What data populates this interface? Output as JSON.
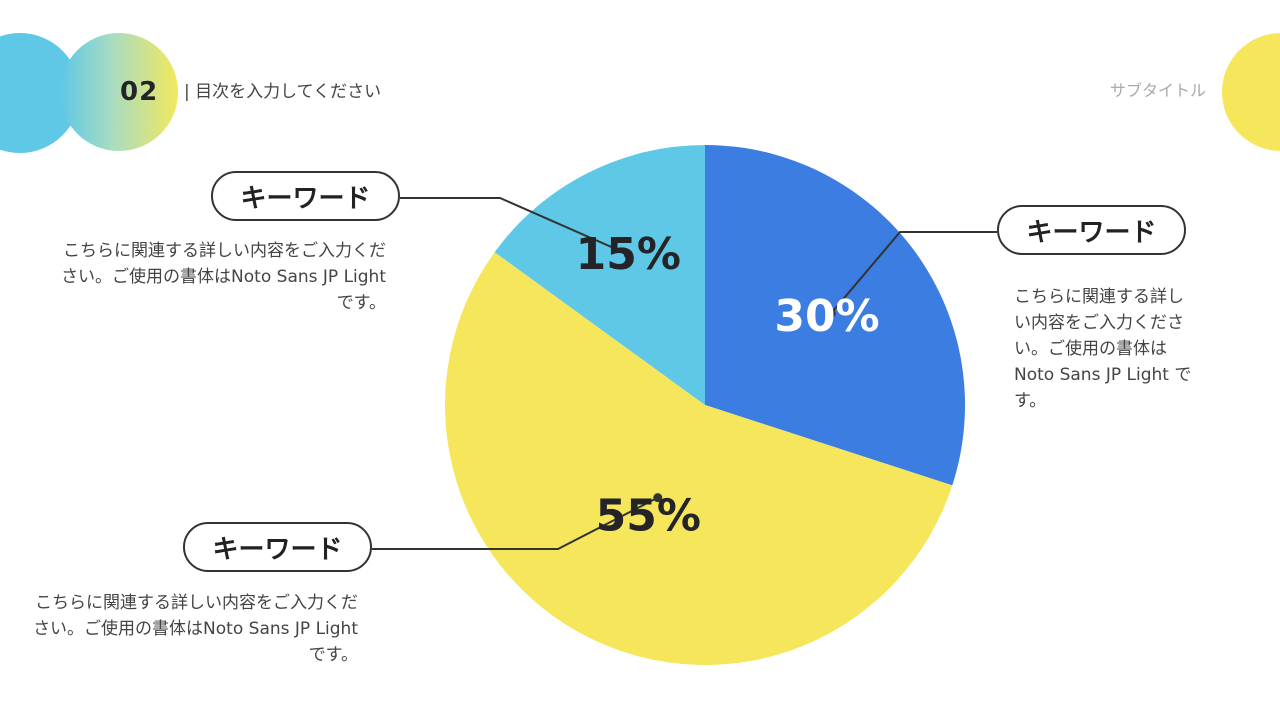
{
  "header": {
    "section_number": "02",
    "toc_text": "| 目次を入力してください",
    "subtitle": "サブタイトル"
  },
  "colors": {
    "blue": "#3b7de1",
    "yellow": "#f5e65c",
    "cyan": "#5ec8e6"
  },
  "callouts": [
    {
      "keyword": "キーワード",
      "description": "こちらに関連する詳しい内容をご入力ください。ご使用の書体はNoto Sans JP Light です。"
    },
    {
      "keyword": "キーワード",
      "description": "こちらに関連する詳しい内容をご入力ください。ご使用の書体はNoto Sans JP Light です。"
    },
    {
      "keyword": "キーワード",
      "description": "こちらに関連する詳しい内容をご入力ください。ご使用の書体はNoto Sans JP Light です。"
    }
  ],
  "chart_data": {
    "type": "pie",
    "categories": [
      "30%",
      "55%",
      "15%"
    ],
    "values": [
      30,
      55,
      15
    ],
    "labels": [
      "30%",
      "55%",
      "15%"
    ],
    "colors": [
      "#3b7de1",
      "#f5e65c",
      "#5ec8e6"
    ],
    "label_colors": [
      "#ffffff",
      "#242428",
      "#242428"
    ],
    "start": "12 o'clock",
    "direction": "clockwise"
  }
}
